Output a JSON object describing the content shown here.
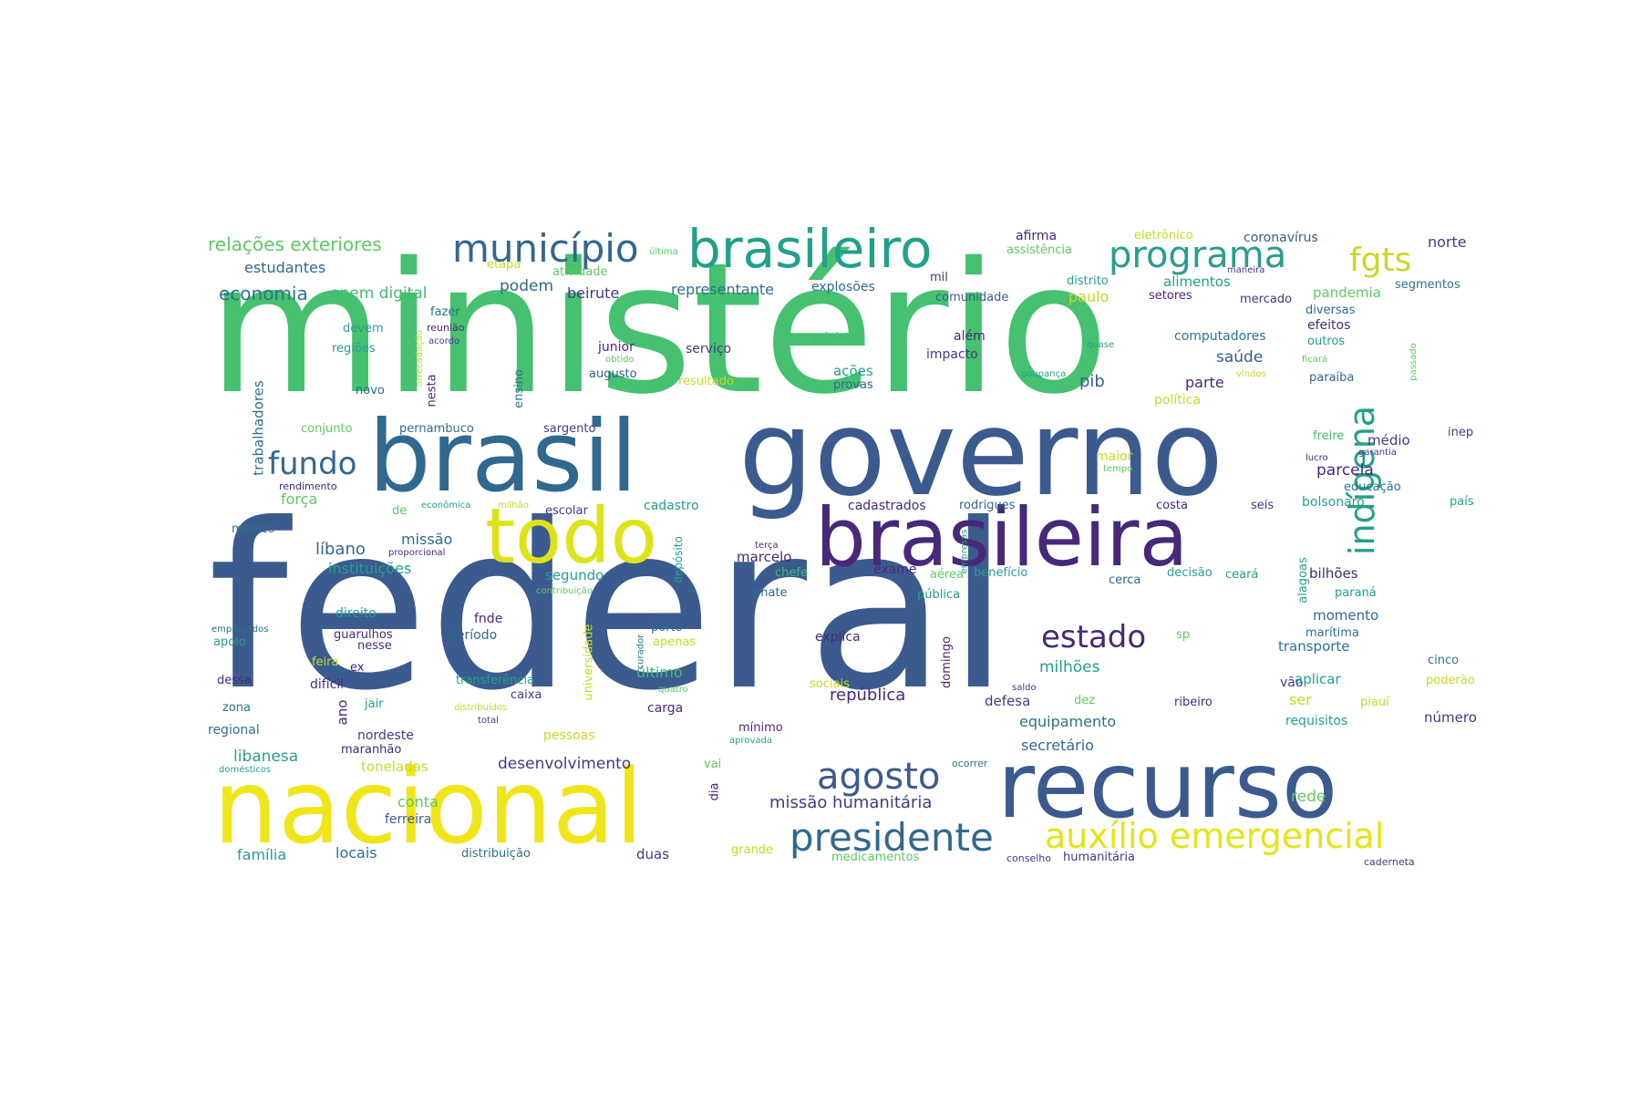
{
  "words": [
    {
      "text": "federal",
      "color": "#3b5b8e"
    },
    {
      "text": "ministério",
      "color": "#45c16f"
    },
    {
      "text": "governo",
      "color": "#3b5b8e"
    },
    {
      "text": "brasil",
      "color": "#31688e"
    },
    {
      "text": "recurso",
      "color": "#3b5b8e"
    },
    {
      "text": "nacional",
      "color": "#f0e51b"
    },
    {
      "text": "brasileira",
      "color": "#482878"
    },
    {
      "text": "todo",
      "color": "#dde318"
    },
    {
      "text": "brasileiro",
      "color": "#21a08a"
    },
    {
      "text": "município",
      "color": "#31688e"
    },
    {
      "text": "programa",
      "color": "#2a9d8f"
    },
    {
      "text": "fgts",
      "color": "#c8d827"
    },
    {
      "text": "indígena",
      "color": "#21a08a"
    },
    {
      "text": "estado",
      "color": "#482878"
    },
    {
      "text": "presidente",
      "color": "#31688e"
    },
    {
      "text": "auxílio emergencial",
      "color": "#e4e419"
    },
    {
      "text": "agosto",
      "color": "#3b5b8e"
    },
    {
      "text": "fundo",
      "color": "#31688e"
    },
    {
      "text": "relações exteriores",
      "color": "#5ec962"
    },
    {
      "text": "economia",
      "color": "#2c728e"
    },
    {
      "text": "estudantes",
      "color": "#31688e"
    },
    {
      "text": "enem digital",
      "color": "#3fbc73"
    },
    {
      "text": "podem",
      "color": "#31688e"
    },
    {
      "text": "beirute",
      "color": "#443983"
    },
    {
      "text": "representante",
      "color": "#2c728e"
    },
    {
      "text": "explosões",
      "color": "#31688e"
    },
    {
      "text": "mil",
      "color": "#443983"
    },
    {
      "text": "afirma",
      "color": "#482878"
    },
    {
      "text": "assistência",
      "color": "#5ec962"
    },
    {
      "text": "eletrônico",
      "color": "#c8d827"
    },
    {
      "text": "coronavírus",
      "color": "#3b5b8e"
    },
    {
      "text": "norte",
      "color": "#443983"
    },
    {
      "text": "distrito",
      "color": "#2a9d8f"
    },
    {
      "text": "alimentos",
      "color": "#21a08a"
    },
    {
      "text": "pandemia",
      "color": "#5ec962"
    },
    {
      "text": "segmentos",
      "color": "#2c728e"
    },
    {
      "text": "comunidade",
      "color": "#3b5b8e"
    },
    {
      "text": "paulo",
      "color": "#c8d827"
    },
    {
      "text": "setores",
      "color": "#482878"
    },
    {
      "text": "mercado",
      "color": "#443983"
    },
    {
      "text": "diversas",
      "color": "#31688e"
    },
    {
      "text": "efeitos",
      "color": "#482878"
    },
    {
      "text": "outros",
      "color": "#21a08a"
    },
    {
      "text": "computadores",
      "color": "#2c728e"
    },
    {
      "text": "além",
      "color": "#482878"
    },
    {
      "text": "impacto",
      "color": "#443983"
    },
    {
      "text": "ministro",
      "color": "#3fbc73"
    },
    {
      "text": "serviço",
      "color": "#443983"
    },
    {
      "text": "junior",
      "color": "#482878"
    },
    {
      "text": "augusto",
      "color": "#3b5b8e"
    },
    {
      "text": "resultado",
      "color": "#c8d827"
    },
    {
      "text": "ações",
      "color": "#21a08a"
    },
    {
      "text": "provas",
      "color": "#31688e"
    },
    {
      "text": "saúde",
      "color": "#3b5b8e"
    },
    {
      "text": "pib",
      "color": "#3b5b8e"
    },
    {
      "text": "parte",
      "color": "#482878"
    },
    {
      "text": "política",
      "color": "#c8d827"
    },
    {
      "text": "paraíba",
      "color": "#31688e"
    },
    {
      "text": "fazer",
      "color": "#2c728e"
    },
    {
      "text": "devem",
      "color": "#2a9d8f"
    },
    {
      "text": "regiões",
      "color": "#2a9d8f"
    },
    {
      "text": "novo",
      "color": "#31688e"
    },
    {
      "text": "nesta",
      "color": "#482878"
    },
    {
      "text": "ensino",
      "color": "#2c728e"
    },
    {
      "text": "trabalhadores",
      "color": "#2c728e"
    },
    {
      "text": "conjunto",
      "color": "#5ec962"
    },
    {
      "text": "pernambuco",
      "color": "#31688e"
    },
    {
      "text": "sargento",
      "color": "#443983"
    },
    {
      "text": "rendimento",
      "color": "#482878"
    },
    {
      "text": "força",
      "color": "#5ec962"
    },
    {
      "text": "médico",
      "color": "#2c728e"
    },
    {
      "text": "de",
      "color": "#5ec962"
    },
    {
      "text": "cadastro",
      "color": "#21a08a"
    },
    {
      "text": "escolar",
      "color": "#443983"
    },
    {
      "text": "cadastrados",
      "color": "#482878"
    },
    {
      "text": "rodrigues",
      "color": "#31688e"
    },
    {
      "text": "costa",
      "color": "#482878"
    },
    {
      "text": "seis",
      "color": "#443983"
    },
    {
      "text": "bolsonaro",
      "color": "#2a9d8f"
    },
    {
      "text": "país",
      "color": "#21a08a"
    },
    {
      "text": "freire",
      "color": "#3fbc73"
    },
    {
      "text": "médio",
      "color": "#443983"
    },
    {
      "text": "inep",
      "color": "#443983"
    },
    {
      "text": "maior",
      "color": "#c8d827"
    },
    {
      "text": "parcela",
      "color": "#482878"
    },
    {
      "text": "educação",
      "color": "#2c728e"
    },
    {
      "text": "líbano",
      "color": "#31688e"
    },
    {
      "text": "missão",
      "color": "#31688e"
    },
    {
      "text": "instituições",
      "color": "#21a08a"
    },
    {
      "text": "segundo",
      "color": "#21a08a"
    },
    {
      "text": "marcelo",
      "color": "#482878"
    },
    {
      "text": "chefe",
      "color": "#3fbc73"
    },
    {
      "text": "exame",
      "color": "#482878"
    },
    {
      "text": "benefício",
      "color": "#2a9d8f"
    },
    {
      "text": "cerca",
      "color": "#31688e"
    },
    {
      "text": "decisão",
      "color": "#2a9d8f"
    },
    {
      "text": "ceará",
      "color": "#21a08a"
    },
    {
      "text": "alagoas",
      "color": "#2a9d8f"
    },
    {
      "text": "bilhões",
      "color": "#482878"
    },
    {
      "text": "paraná",
      "color": "#21a08a"
    },
    {
      "text": "pública",
      "color": "#21a08a"
    },
    {
      "text": "aérea",
      "color": "#5ec962"
    },
    {
      "text": "pnate",
      "color": "#31688e"
    },
    {
      "text": "direito",
      "color": "#21a08a"
    },
    {
      "text": "fnde",
      "color": "#482878"
    },
    {
      "text": "porto",
      "color": "#31688e"
    },
    {
      "text": "apenas",
      "color": "#c8d827"
    },
    {
      "text": "explica",
      "color": "#482878"
    },
    {
      "text": "sp",
      "color": "#5ec962"
    },
    {
      "text": "momento",
      "color": "#31688e"
    },
    {
      "text": "marítima",
      "color": "#2c728e"
    },
    {
      "text": "transporte",
      "color": "#2c728e"
    },
    {
      "text": "cinco",
      "color": "#2c728e"
    },
    {
      "text": "apoio",
      "color": "#2a9d8f"
    },
    {
      "text": "guarulhos",
      "color": "#482878"
    },
    {
      "text": "nesse",
      "color": "#482878"
    },
    {
      "text": "período",
      "color": "#31688e"
    },
    {
      "text": "último",
      "color": "#3fbc73"
    },
    {
      "text": "milhões",
      "color": "#21a08a"
    },
    {
      "text": "feira",
      "color": "#c8d827"
    },
    {
      "text": "ex",
      "color": "#482878"
    },
    {
      "text": "dessa",
      "color": "#482878"
    },
    {
      "text": "difícil",
      "color": "#482878"
    },
    {
      "text": "jair",
      "color": "#2a9d8f"
    },
    {
      "text": "transferência",
      "color": "#21a08a"
    },
    {
      "text": "caixa",
      "color": "#443983"
    },
    {
      "text": "república",
      "color": "#482878"
    },
    {
      "text": "defesa",
      "color": "#443983"
    },
    {
      "text": "dez",
      "color": "#5ec962"
    },
    {
      "text": "vão",
      "color": "#443983"
    },
    {
      "text": "aplicar",
      "color": "#21a08a"
    },
    {
      "text": "poderão",
      "color": "#c8d827"
    },
    {
      "text": "zona",
      "color": "#2c728e"
    },
    {
      "text": "regional",
      "color": "#2c728e"
    },
    {
      "text": "ano",
      "color": "#482878"
    },
    {
      "text": "nordeste",
      "color": "#443983"
    },
    {
      "text": "carga",
      "color": "#482878"
    },
    {
      "text": "pessoas",
      "color": "#c8d827"
    },
    {
      "text": "equipamento",
      "color": "#2c728e"
    },
    {
      "text": "ribeiro",
      "color": "#482878"
    },
    {
      "text": "ser",
      "color": "#c8d827"
    },
    {
      "text": "piauí",
      "color": "#c8d827"
    },
    {
      "text": "requisitos",
      "color": "#21a08a"
    },
    {
      "text": "número",
      "color": "#443983"
    },
    {
      "text": "maranhão",
      "color": "#482878"
    },
    {
      "text": "mínimo",
      "color": "#482878"
    },
    {
      "text": "libanesa",
      "color": "#2a9d8f"
    },
    {
      "text": "toneladas",
      "color": "#c8d827"
    },
    {
      "text": "desenvolvimento",
      "color": "#443983"
    },
    {
      "text": "secretário",
      "color": "#31688e"
    },
    {
      "text": "vai",
      "color": "#5ec962"
    },
    {
      "text": "dia",
      "color": "#482878"
    },
    {
      "text": "missão humanitária",
      "color": "#443983"
    },
    {
      "text": "rede",
      "color": "#5ec962"
    },
    {
      "text": "conta",
      "color": "#5ec962"
    },
    {
      "text": "ferreira",
      "color": "#3b5b8e"
    },
    {
      "text": "família",
      "color": "#2a9d8f"
    },
    {
      "text": "locais",
      "color": "#2c728e"
    },
    {
      "text": "distribuição",
      "color": "#2c728e"
    },
    {
      "text": "duas",
      "color": "#443983"
    },
    {
      "text": "grande",
      "color": "#c8d827"
    },
    {
      "text": "medicamentos",
      "color": "#5ec962"
    },
    {
      "text": "conselho",
      "color": "#443983"
    },
    {
      "text": "humanitária",
      "color": "#443983"
    },
    {
      "text": "caderneta",
      "color": "#443983"
    },
    {
      "text": "etapa",
      "color": "#c8d827"
    },
    {
      "text": "atividade",
      "color": "#5ec962"
    },
    {
      "text": "última",
      "color": "#5ec962"
    },
    {
      "text": "maneira",
      "color": "#443983"
    },
    {
      "text": "reunião",
      "color": "#482878"
    },
    {
      "text": "acordo",
      "color": "#443983"
    },
    {
      "text": "arrecadação",
      "color": "#c8d827"
    },
    {
      "text": "obtido",
      "color": "#5ec962"
    },
    {
      "text": "quase",
      "color": "#2a9d8f"
    },
    {
      "text": "ficará",
      "color": "#5ec962"
    },
    {
      "text": "vindos",
      "color": "#c8d827"
    },
    {
      "text": "poupança",
      "color": "#2a9d8f"
    },
    {
      "text": "passado",
      "color": "#5ec962"
    },
    {
      "text": "lucro",
      "color": "#482878"
    },
    {
      "text": "garantia",
      "color": "#443983"
    },
    {
      "text": "tempo",
      "color": "#5ec962"
    },
    {
      "text": "econômica",
      "color": "#2a9d8f"
    },
    {
      "text": "milhão",
      "color": "#c8d827"
    },
    {
      "text": "proporcional",
      "color": "#482878"
    },
    {
      "text": "depósito",
      "color": "#2a9d8f"
    },
    {
      "text": "terça",
      "color": "#482878"
    },
    {
      "text": "empresas",
      "color": "#2a9d8f"
    },
    {
      "text": "contribuição",
      "color": "#5ec962"
    },
    {
      "text": "universidade",
      "color": "#c8d827"
    },
    {
      "text": "curador",
      "color": "#2c728e"
    },
    {
      "text": "quatro",
      "color": "#5ec962"
    },
    {
      "text": "domingo",
      "color": "#482878"
    },
    {
      "text": "sociais",
      "color": "#c8d827"
    },
    {
      "text": "saldo",
      "color": "#443983"
    },
    {
      "text": "empregados",
      "color": "#2c728e"
    },
    {
      "text": "distribuídos",
      "color": "#c8d827"
    },
    {
      "text": "total",
      "color": "#443983"
    },
    {
      "text": "aprovada",
      "color": "#2a9d8f"
    },
    {
      "text": "domésticos",
      "color": "#2a9d8f"
    },
    {
      "text": "ocorrer",
      "color": "#2c728e"
    }
  ]
}
